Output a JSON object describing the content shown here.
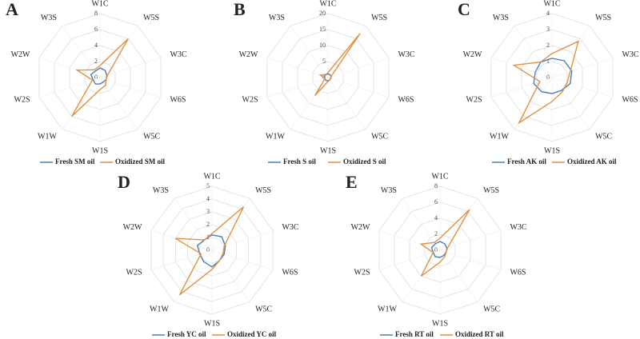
{
  "chart_data": [
    {
      "type": "radar",
      "label": "A",
      "categories": [
        "W1C",
        "W5S",
        "W3C",
        "W6S",
        "W5C",
        "W1S",
        "W1W",
        "W2S",
        "W2W",
        "W3S"
      ],
      "series": [
        {
          "name": "Fresh SM oil",
          "color": "#4a7ebb",
          "values": [
            1.2,
            1.1,
            0.9,
            0.8,
            0.7,
            0.8,
            1.0,
            0.9,
            1.2,
            1.0
          ]
        },
        {
          "name": "Oxidized SM oil",
          "color": "#e0913f",
          "values": [
            1.5,
            6.0,
            1.0,
            0.8,
            1.2,
            1.5,
            6.0,
            1.0,
            3.0,
            1.2
          ]
        }
      ],
      "ylim": [
        0,
        8
      ],
      "yticks": [
        0,
        2,
        4,
        6,
        8
      ]
    },
    {
      "type": "radar",
      "label": "B",
      "categories": [
        "W1C",
        "W5S",
        "W3C",
        "W6S",
        "W5C",
        "W1S",
        "W1W",
        "W2S",
        "W2W",
        "W3S"
      ],
      "series": [
        {
          "name": "Fresh S oil",
          "color": "#4a7ebb",
          "values": [
            1.2,
            1.1,
            1.0,
            0.9,
            0.9,
            1.0,
            1.1,
            1.0,
            1.2,
            1.1
          ]
        },
        {
          "name": "Oxidized S oil",
          "color": "#e0913f",
          "values": [
            1.5,
            17,
            1.0,
            0.8,
            1.0,
            1.2,
            7,
            1.0,
            2.5,
            1.2
          ]
        }
      ],
      "ylim": [
        0,
        20
      ],
      "yticks": [
        0,
        5,
        10,
        15,
        20
      ]
    },
    {
      "type": "radar",
      "label": "C",
      "categories": [
        "W1C",
        "W5S",
        "W3C",
        "W6S",
        "W5C",
        "W1S",
        "W1W",
        "W2S",
        "W2W",
        "W3S"
      ],
      "series": [
        {
          "name": "Fresh AK oil",
          "color": "#4a7ebb",
          "values": [
            1.2,
            1.3,
            1.3,
            1.2,
            1.0,
            1.0,
            1.1,
            1.2,
            1.1,
            1.2
          ]
        },
        {
          "name": "Oxidized AK oil",
          "color": "#e0913f",
          "values": [
            1.5,
            2.8,
            1.2,
            1.0,
            1.1,
            1.5,
            3.5,
            0.8,
            2.5,
            1.2
          ]
        }
      ],
      "ylim": [
        0,
        4
      ],
      "yticks": [
        0,
        1,
        2,
        3,
        4
      ]
    },
    {
      "type": "radar",
      "label": "D",
      "categories": [
        "W1C",
        "W5S",
        "W3C",
        "W6S",
        "W5C",
        "W1S",
        "W1W",
        "W2S",
        "W2W",
        "W3S"
      ],
      "series": [
        {
          "name": "Fresh YC oil",
          "color": "#4a7ebb",
          "values": [
            1.2,
            1.3,
            1.1,
            1.0,
            1.0,
            1.3,
            1.1,
            1.0,
            1.2,
            1.0
          ]
        },
        {
          "name": "Oxidized YC oil",
          "color": "#e0913f",
          "values": [
            1.3,
            4.2,
            1.0,
            0.9,
            1.0,
            1.5,
            4.3,
            0.9,
            3.0,
            1.0
          ]
        }
      ],
      "ylim": [
        0,
        5
      ],
      "yticks": [
        0,
        1,
        2,
        3,
        4,
        5
      ]
    },
    {
      "type": "radar",
      "label": "E",
      "categories": [
        "W1C",
        "W5S",
        "W3C",
        "W6S",
        "W5C",
        "W1S",
        "W1W",
        "W2S",
        "W2W",
        "W3S"
      ],
      "series": [
        {
          "name": "Fresh RT oil",
          "color": "#4a7ebb",
          "values": [
            1.1,
            1.0,
            0.9,
            0.8,
            0.8,
            0.9,
            1.0,
            0.9,
            1.1,
            1.0
          ]
        },
        {
          "name": "Oxidized RT oil",
          "color": "#e0913f",
          "values": [
            1.5,
            6.3,
            1.0,
            0.8,
            1.0,
            1.5,
            4.0,
            0.9,
            2.5,
            1.2
          ]
        }
      ],
      "ylim": [
        0,
        8
      ],
      "yticks": [
        0,
        2,
        4,
        6,
        8
      ]
    }
  ]
}
